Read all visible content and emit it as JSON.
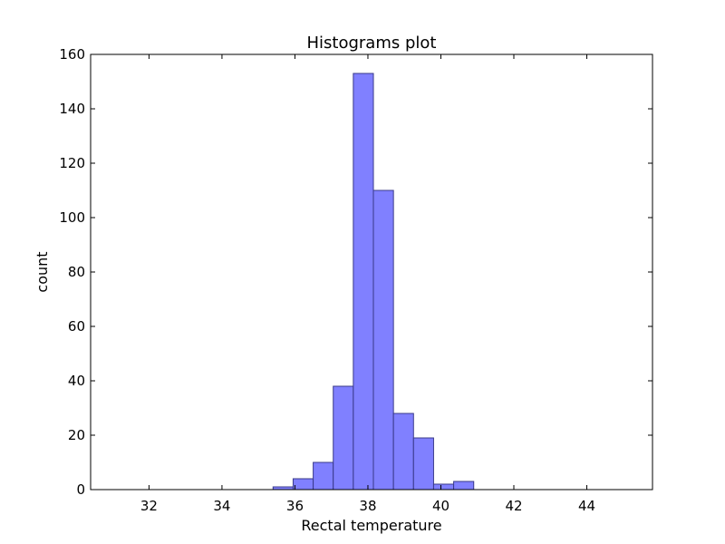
{
  "chart_data": {
    "type": "bar",
    "title": "Histograms plot",
    "xlabel": "Rectal temperature",
    "ylabel": "count",
    "xlim": [
      30.4,
      45.8
    ],
    "ylim": [
      0,
      160
    ],
    "x_ticks": [
      32,
      34,
      36,
      38,
      40,
      42,
      44
    ],
    "y_ticks": [
      0,
      20,
      40,
      60,
      80,
      100,
      120,
      140,
      160
    ],
    "bar_color": "#8080ff",
    "bar_edge_color": "#3a3a8a",
    "grid": false,
    "bins": [
      {
        "start": 35.4,
        "end": 35.95,
        "count": 1
      },
      {
        "start": 35.95,
        "end": 36.5,
        "count": 4
      },
      {
        "start": 36.5,
        "end": 37.05,
        "count": 10
      },
      {
        "start": 37.05,
        "end": 37.6,
        "count": 38
      },
      {
        "start": 37.6,
        "end": 38.15,
        "count": 153
      },
      {
        "start": 38.15,
        "end": 38.7,
        "count": 110
      },
      {
        "start": 38.7,
        "end": 39.25,
        "count": 28
      },
      {
        "start": 39.25,
        "end": 39.8,
        "count": 19
      },
      {
        "start": 39.8,
        "end": 40.35,
        "count": 2
      },
      {
        "start": 40.35,
        "end": 40.9,
        "count": 3
      }
    ]
  }
}
